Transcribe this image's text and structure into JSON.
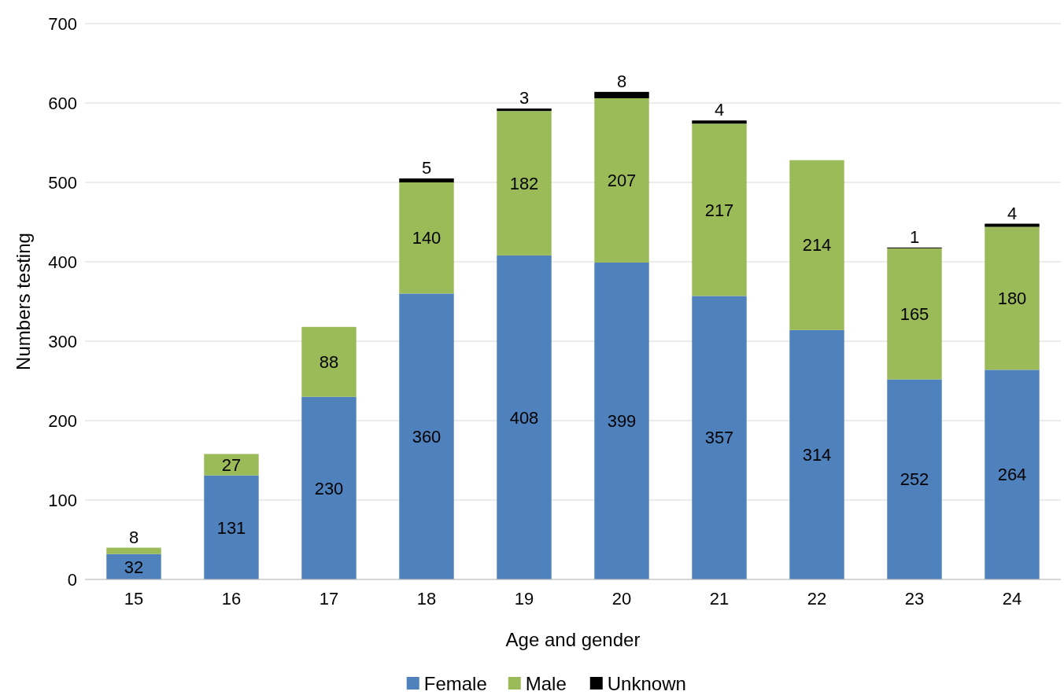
{
  "chart_data": {
    "type": "bar",
    "stacked": true,
    "xlabel": "Age and gender",
    "ylabel": "Numbers testing",
    "categories": [
      "15",
      "16",
      "17",
      "18",
      "19",
      "20",
      "21",
      "22",
      "23",
      "24"
    ],
    "series": [
      {
        "name": "Female",
        "color": "#4f81bd",
        "values": [
          32,
          131,
          230,
          360,
          408,
          399,
          357,
          314,
          252,
          264
        ]
      },
      {
        "name": "Male",
        "color": "#9bbb59",
        "values": [
          8,
          27,
          88,
          140,
          182,
          207,
          217,
          214,
          165,
          180
        ]
      },
      {
        "name": "Unknown",
        "color": "#000000",
        "values": [
          null,
          null,
          null,
          5,
          3,
          8,
          4,
          null,
          1,
          4
        ]
      }
    ],
    "ylim": [
      0,
      700
    ],
    "yticks": [
      0,
      100,
      200,
      300,
      400,
      500,
      600,
      700
    ],
    "grid": "y",
    "legend": "bottom",
    "data_labels": true
  }
}
